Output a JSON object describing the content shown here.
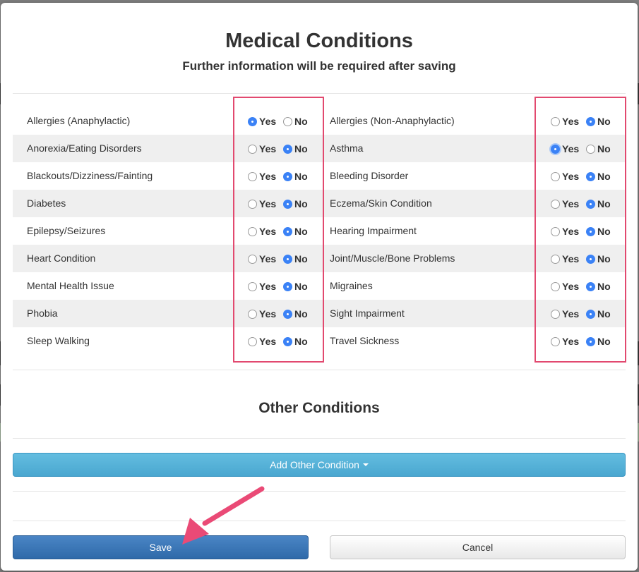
{
  "modal": {
    "title": "Medical Conditions",
    "subtitle": "Further information will be required after saving"
  },
  "options": {
    "yes": "Yes",
    "no": "No"
  },
  "conditions": [
    {
      "left": {
        "label": "Allergies (Anaphylactic)",
        "value": "yes"
      },
      "right": {
        "label": "Allergies (Non-Anaphylactic)",
        "value": "no"
      }
    },
    {
      "left": {
        "label": "Anorexia/Eating Disorders",
        "value": "no"
      },
      "right": {
        "label": "Asthma",
        "value": "yes"
      }
    },
    {
      "left": {
        "label": "Blackouts/Dizziness/Fainting",
        "value": "no"
      },
      "right": {
        "label": "Bleeding Disorder",
        "value": "no"
      }
    },
    {
      "left": {
        "label": "Diabetes",
        "value": "no"
      },
      "right": {
        "label": "Eczema/Skin Condition",
        "value": "no"
      }
    },
    {
      "left": {
        "label": "Epilepsy/Seizures",
        "value": "no"
      },
      "right": {
        "label": "Hearing Impairment",
        "value": "no"
      }
    },
    {
      "left": {
        "label": "Heart Condition",
        "value": "no"
      },
      "right": {
        "label": "Joint/Muscle/Bone Problems",
        "value": "no"
      }
    },
    {
      "left": {
        "label": "Mental Health Issue",
        "value": "no"
      },
      "right": {
        "label": "Migraines",
        "value": "no"
      }
    },
    {
      "left": {
        "label": "Phobia",
        "value": "no"
      },
      "right": {
        "label": "Sight Impairment",
        "value": "no"
      }
    },
    {
      "left": {
        "label": "Sleep Walking",
        "value": "no"
      },
      "right": {
        "label": "Travel Sickness",
        "value": "no"
      }
    }
  ],
  "other": {
    "title": "Other Conditions",
    "add_label": "Add Other Condition"
  },
  "footer": {
    "save_label": "Save",
    "cancel_label": "Cancel"
  },
  "colors": {
    "selected_radio": "#3b82f6",
    "highlight_box": "#e2496f",
    "add_button": "#5bc0de",
    "save_button": "#337ab7"
  },
  "icons": {
    "dropdown": "caret-down-icon",
    "annotation": "arrow-annotation-icon"
  }
}
